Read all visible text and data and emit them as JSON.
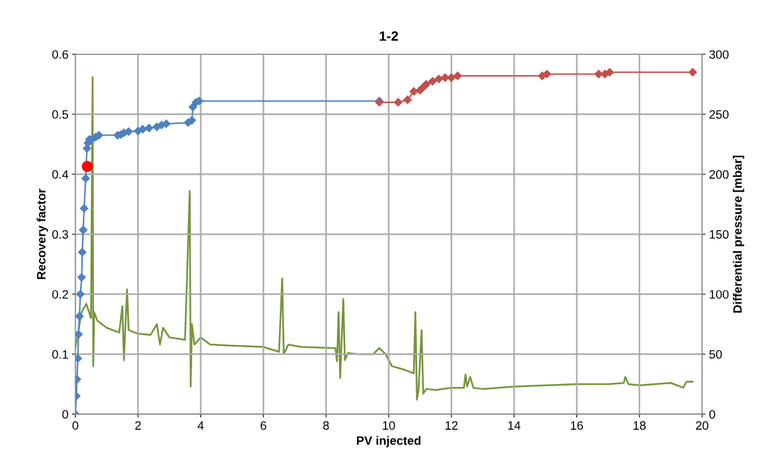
{
  "chart_data": {
    "type": "line",
    "title": "1-2",
    "xlabel": "PV injected",
    "ylabel": "Recovery factor",
    "y2label": "Differential pressure [mbar]",
    "xlim": [
      0,
      20
    ],
    "xticks": [
      0,
      2,
      4,
      6,
      8,
      10,
      12,
      14,
      16,
      18,
      20
    ],
    "ylim": [
      0,
      0.6
    ],
    "yticks": [
      0,
      0.1,
      0.2,
      0.3,
      0.4,
      0.5,
      0.6
    ],
    "y2lim": [
      0,
      300
    ],
    "y2ticks": [
      0,
      50,
      100,
      150,
      200,
      250,
      300
    ],
    "grid": true,
    "line_style": "solid",
    "series": [
      {
        "axis": "y2",
        "color": "#77933c",
        "marker": "none",
        "x": [
          0,
          0.2,
          0.35,
          0.5,
          0.55,
          0.57,
          0.6,
          0.7,
          1.0,
          1.4,
          1.5,
          1.55,
          1.65,
          1.7,
          2.0,
          2.4,
          2.6,
          2.7,
          2.8,
          3.0,
          3.5,
          3.65,
          3.68,
          3.72,
          3.8,
          4.0,
          4.3,
          5.0,
          6.0,
          6.5,
          6.6,
          6.65,
          6.8,
          7.2,
          8.3,
          8.35,
          8.4,
          8.45,
          8.55,
          8.6,
          8.7,
          9.0,
          9.5,
          9.7,
          9.9,
          10.1,
          10.5,
          10.8,
          10.85,
          10.9,
          10.95,
          11.05,
          11.1,
          11.2,
          11.5,
          12.0,
          12.4,
          12.45,
          12.5,
          12.6,
          12.7,
          13,
          14,
          15,
          16,
          17,
          17.5,
          17.55,
          17.65,
          18,
          19,
          19.4,
          19.5,
          19.7
        ],
        "values": [
          55,
          85,
          92,
          80,
          281,
          40,
          85,
          78,
          72,
          68,
          90,
          45,
          104,
          70,
          67,
          66,
          75,
          58,
          72,
          64,
          62,
          186,
          23,
          75,
          58,
          64,
          58,
          57,
          56,
          52,
          113,
          50,
          58,
          56,
          55,
          44,
          85,
          30,
          96,
          45,
          51,
          50,
          50,
          55,
          50,
          40,
          37,
          34,
          85,
          12,
          20,
          70,
          17,
          21,
          20,
          22,
          22,
          33,
          23,
          31,
          22,
          21,
          23,
          24,
          25,
          25,
          26,
          31,
          25,
          24,
          26,
          22,
          27,
          27
        ]
      },
      {
        "axis": "y",
        "color": "#4f81bd",
        "marker": "diamond",
        "x": [
          0,
          0.03,
          0.05,
          0.08,
          0.1,
          0.13,
          0.16,
          0.2,
          0.22,
          0.25,
          0.28,
          0.33,
          0.37,
          0.4,
          0.45,
          0.55,
          0.65,
          0.75,
          1.35,
          1.45,
          1.55,
          1.7,
          2.0,
          2.15,
          2.35,
          2.6,
          2.75,
          2.9,
          3.6,
          3.72,
          3.75,
          3.85,
          3.95,
          9.7
        ],
        "values": [
          0,
          0.03,
          0.058,
          0.093,
          0.133,
          0.163,
          0.2,
          0.228,
          0.27,
          0.307,
          0.343,
          0.393,
          0.443,
          0.452,
          0.458,
          0.459,
          0.462,
          0.465,
          0.465,
          0.466,
          0.469,
          0.471,
          0.472,
          0.475,
          0.477,
          0.479,
          0.482,
          0.484,
          0.486,
          0.49,
          0.512,
          0.52,
          0.522,
          0.522
        ]
      },
      {
        "axis": "y",
        "color": "#c0504d",
        "marker": "diamond",
        "x": [
          9.7,
          10.3,
          10.6,
          10.8,
          11.0,
          11.1,
          11.2,
          11.4,
          11.6,
          11.8,
          12.0,
          12.2,
          14.9,
          15.05,
          16.7,
          16.9,
          17.05,
          19.7
        ],
        "values": [
          0.52,
          0.52,
          0.524,
          0.538,
          0.54,
          0.545,
          0.55,
          0.555,
          0.559,
          0.561,
          0.561,
          0.564,
          0.564,
          0.567,
          0.567,
          0.567,
          0.57,
          0.57
        ]
      },
      {
        "type": "scatter",
        "axis": "y",
        "color": "#ff0000",
        "marker": "circle",
        "x": [
          0.38
        ],
        "values": [
          0.413
        ]
      }
    ]
  }
}
